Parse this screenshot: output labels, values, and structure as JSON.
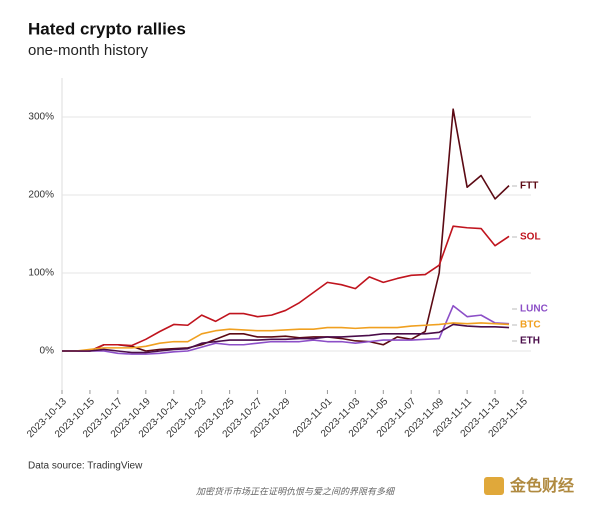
{
  "chart_data": {
    "type": "line",
    "title": "Hated crypto rallies",
    "subtitle": "one-month history",
    "source": "Data source: TradingView",
    "footer": "加密货币市场正在证明仇恨与爱之间的界限有多细",
    "watermark": "金色财经",
    "x": [
      "2023-10-13",
      "2023-10-14",
      "2023-10-15",
      "2023-10-16",
      "2023-10-17",
      "2023-10-18",
      "2023-10-19",
      "2023-10-20",
      "2023-10-21",
      "2023-10-22",
      "2023-10-23",
      "2023-10-24",
      "2023-10-25",
      "2023-10-26",
      "2023-10-27",
      "2023-10-28",
      "2023-10-29",
      "2023-10-30",
      "2023-10-31",
      "2023-11-01",
      "2023-11-02",
      "2023-11-03",
      "2023-11-04",
      "2023-11-05",
      "2023-11-06",
      "2023-11-07",
      "2023-11-08",
      "2023-11-09",
      "2023-11-10",
      "2023-11-11",
      "2023-11-12",
      "2023-11-13",
      "2023-11-14"
    ],
    "series": [
      {
        "name": "FTT",
        "color": "#5c0a14",
        "values": [
          0,
          0,
          0,
          8,
          8,
          6,
          0,
          2,
          3,
          4,
          8,
          15,
          22,
          22,
          18,
          18,
          19,
          17,
          18,
          18,
          16,
          13,
          12,
          8,
          18,
          15,
          25,
          100,
          310,
          210,
          225,
          195,
          212
        ]
      },
      {
        "name": "SOL",
        "color": "#c0141e",
        "values": [
          0,
          0,
          0,
          8,
          8,
          7,
          15,
          25,
          34,
          33,
          46,
          38,
          48,
          48,
          44,
          46,
          52,
          62,
          75,
          88,
          85,
          80,
          95,
          88,
          93,
          97,
          98,
          110,
          160,
          158,
          157,
          135,
          147
        ]
      },
      {
        "name": "LUNC",
        "color": "#8c4fc7",
        "values": [
          0,
          0,
          0,
          0,
          -3,
          -4,
          -4,
          -3,
          -1,
          0,
          5,
          10,
          8,
          8,
          10,
          12,
          12,
          12,
          14,
          12,
          12,
          10,
          12,
          14,
          14,
          14,
          15,
          16,
          58,
          44,
          46,
          36,
          35
        ]
      },
      {
        "name": "BTC",
        "color": "#f0a020",
        "values": [
          0,
          0,
          2,
          4,
          4,
          4,
          6,
          10,
          12,
          12,
          22,
          26,
          28,
          27,
          26,
          26,
          27,
          28,
          28,
          30,
          30,
          29,
          30,
          30,
          30,
          32,
          33,
          34,
          36,
          35,
          36,
          35,
          34
        ]
      },
      {
        "name": "ETH",
        "color": "#4a0d4a",
        "values": [
          0,
          0,
          0,
          2,
          0,
          -2,
          -2,
          0,
          2,
          3,
          10,
          12,
          14,
          14,
          14,
          15,
          15,
          16,
          16,
          18,
          18,
          19,
          20,
          22,
          22,
          22,
          22,
          24,
          34,
          32,
          31,
          31,
          30
        ]
      }
    ],
    "xlim": [
      "2023-10-13",
      "2023-11-15"
    ],
    "xticks": [
      "2023-10-13",
      "2023-10-15",
      "2023-10-17",
      "2023-10-19",
      "2023-10-21",
      "2023-10-23",
      "2023-10-25",
      "2023-10-27",
      "2023-10-29",
      "2023-11-01",
      "2023-11-03",
      "2023-11-05",
      "2023-11-07",
      "2023-11-09",
      "2023-11-11",
      "2023-11-13",
      "2023-11-15"
    ],
    "ylim": [
      -50,
      350
    ],
    "yticks": [
      {
        "value": 0,
        "label": "0%"
      },
      {
        "value": 100,
        "label": "100%"
      },
      {
        "value": 200,
        "label": "200%"
      },
      {
        "value": 300,
        "label": "300%"
      }
    ],
    "grid": true
  }
}
